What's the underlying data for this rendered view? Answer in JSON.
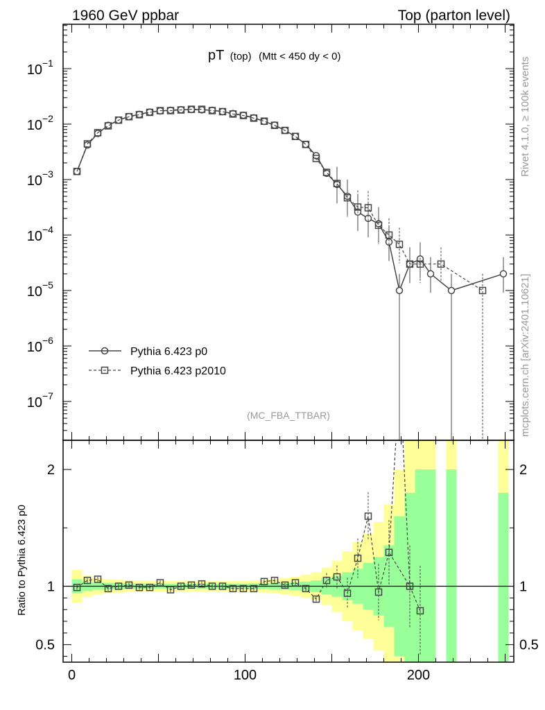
{
  "header": {
    "left": "1960 GeV ppbar",
    "right": "Top (parton level)"
  },
  "side": {
    "rivet": "Rivet 4.1.0, ≥ 100k events",
    "mcplots": "mcplots.cern.ch [arXiv:2401.10621]"
  },
  "chart_data": {
    "type": "line",
    "title_main": "pT",
    "title_sub": "(top)",
    "title_cut": "(Mtt < 450 dy < 0)",
    "analysis": "(MC_FBA_TTBAR)",
    "ratio_ylabel": "Ratio to Pythia 6.423 p0",
    "xlim": [
      -5,
      255
    ],
    "ylim_log": [
      -7.7,
      -0.2
    ],
    "ratio_ylim": [
      0.35,
      2.25
    ],
    "x_ticks": [
      0,
      100,
      200
    ],
    "x_tick_labels": [
      "0",
      "100",
      "200"
    ],
    "y_tick_exponents": [
      -1,
      -2,
      -3,
      -4,
      -5,
      -6,
      -7
    ],
    "y_tick_labels": [
      "10",
      "10",
      "10",
      "10",
      "10",
      "10",
      "10"
    ],
    "y_tick_sups": [
      "−1",
      "−2",
      "−3",
      "−4",
      "−5",
      "−6",
      "−7"
    ],
    "ratio_ticks": [
      0.5,
      1,
      2
    ],
    "ratio_tick_labels": [
      "0.5",
      "1",
      "2"
    ],
    "legend": [
      "Pythia 6.423 p0",
      "Pythia 6.423 p2010"
    ],
    "series": [
      {
        "name": "Pythia 6.423 p0",
        "style": "solid",
        "marker": "circle",
        "x": [
          3,
          9,
          15,
          21,
          27,
          33,
          39,
          45,
          51,
          57,
          63,
          69,
          75,
          81,
          87,
          93,
          99,
          105,
          111,
          117,
          123,
          129,
          135,
          141,
          147,
          153,
          159,
          165,
          171,
          177,
          183,
          189,
          195,
          201,
          207,
          219,
          249
        ],
        "y": [
          0.0014,
          0.0042,
          0.0068,
          0.0095,
          0.0118,
          0.0137,
          0.015,
          0.0165,
          0.0173,
          0.0178,
          0.0182,
          0.0183,
          0.0181,
          0.0178,
          0.0168,
          0.0155,
          0.0145,
          0.013,
          0.0112,
          0.0096,
          0.0077,
          0.006,
          0.0043,
          0.0027,
          0.0013,
          0.00082,
          0.0005,
          0.00026,
          0.0002,
          0.00016,
          7.5e-05,
          1e-05,
          3e-05,
          3.7e-05,
          2e-05,
          1e-05,
          2e-05
        ]
      },
      {
        "name": "Pythia 6.423 p2010",
        "style": "dashed",
        "marker": "square",
        "x": [
          3,
          9,
          15,
          21,
          27,
          33,
          39,
          45,
          51,
          57,
          63,
          69,
          75,
          81,
          87,
          93,
          99,
          105,
          111,
          117,
          123,
          129,
          135,
          141,
          147,
          153,
          159,
          165,
          171,
          177,
          183,
          189,
          195,
          201,
          213,
          237
        ],
        "y": [
          0.0014,
          0.0044,
          0.007,
          0.0093,
          0.0118,
          0.0136,
          0.0148,
          0.0163,
          0.0175,
          0.0175,
          0.018,
          0.0185,
          0.0185,
          0.0175,
          0.0168,
          0.0152,
          0.0143,
          0.0128,
          0.0113,
          0.0095,
          0.0077,
          0.006,
          0.0043,
          0.0024,
          0.00135,
          0.00085,
          0.00047,
          0.00032,
          0.00031,
          0.00015,
          0.0001,
          6.8e-05,
          3e-05,
          3e-05,
          3e-05,
          1e-05
        ]
      }
    ],
    "ratio_series": {
      "x": [
        3,
        9,
        15,
        21,
        27,
        33,
        39,
        45,
        51,
        57,
        63,
        69,
        75,
        81,
        87,
        93,
        99,
        105,
        111,
        117,
        123,
        129,
        135,
        141,
        147,
        153,
        159,
        165,
        171,
        177,
        183,
        195,
        201
      ],
      "y": [
        0.99,
        1.05,
        1.06,
        0.98,
        1.0,
        1.01,
        0.99,
        0.99,
        1.03,
        0.97,
        1.0,
        1.01,
        1.02,
        1.0,
        1.0,
        0.98,
        0.98,
        0.98,
        1.04,
        1.05,
        1.01,
        1.03,
        0.98,
        0.89,
        1.05,
        1.08,
        0.94,
        1.24,
        1.6,
        0.95,
        1.29,
        1.0,
        0.79
      ]
    },
    "band_edges": [
      0,
      6,
      12,
      18,
      24,
      30,
      36,
      42,
      48,
      54,
      60,
      66,
      72,
      78,
      84,
      90,
      96,
      102,
      108,
      114,
      120,
      126,
      132,
      138,
      144,
      150,
      156,
      162,
      168,
      174,
      180,
      186,
      192,
      198,
      204,
      210
    ],
    "band_inner": [
      0.06,
      0.04,
      0.03,
      0.03,
      0.025,
      0.025,
      0.02,
      0.02,
      0.02,
      0.02,
      0.02,
      0.02,
      0.02,
      0.02,
      0.02,
      0.02,
      0.02,
      0.025,
      0.025,
      0.03,
      0.03,
      0.035,
      0.04,
      0.05,
      0.07,
      0.09,
      0.12,
      0.15,
      0.2,
      0.25,
      0.35,
      0.6,
      0.8,
      1.0,
      1.0
    ],
    "band_outer": [
      0.14,
      0.09,
      0.07,
      0.06,
      0.055,
      0.05,
      0.05,
      0.045,
      0.045,
      0.045,
      0.045,
      0.045,
      0.045,
      0.045,
      0.045,
      0.045,
      0.045,
      0.05,
      0.055,
      0.06,
      0.07,
      0.08,
      0.1,
      0.12,
      0.16,
      0.22,
      0.3,
      0.38,
      0.45,
      0.55,
      0.7,
      1.0,
      1.4,
      1.4,
      1.4
    ],
    "extra_bands": [
      {
        "x0": 216,
        "x1": 222,
        "inner_hi": 2.0,
        "outer_hi": 2.3,
        "lo": 0.3
      },
      {
        "x0": 246,
        "x1": 252,
        "inner_hi": 1.8,
        "outer_hi": 2.3,
        "lo": 0.3
      }
    ]
  },
  "colors": {
    "inner_band": "#99ff99",
    "outer_band": "#ffff99",
    "line": "#444444"
  }
}
